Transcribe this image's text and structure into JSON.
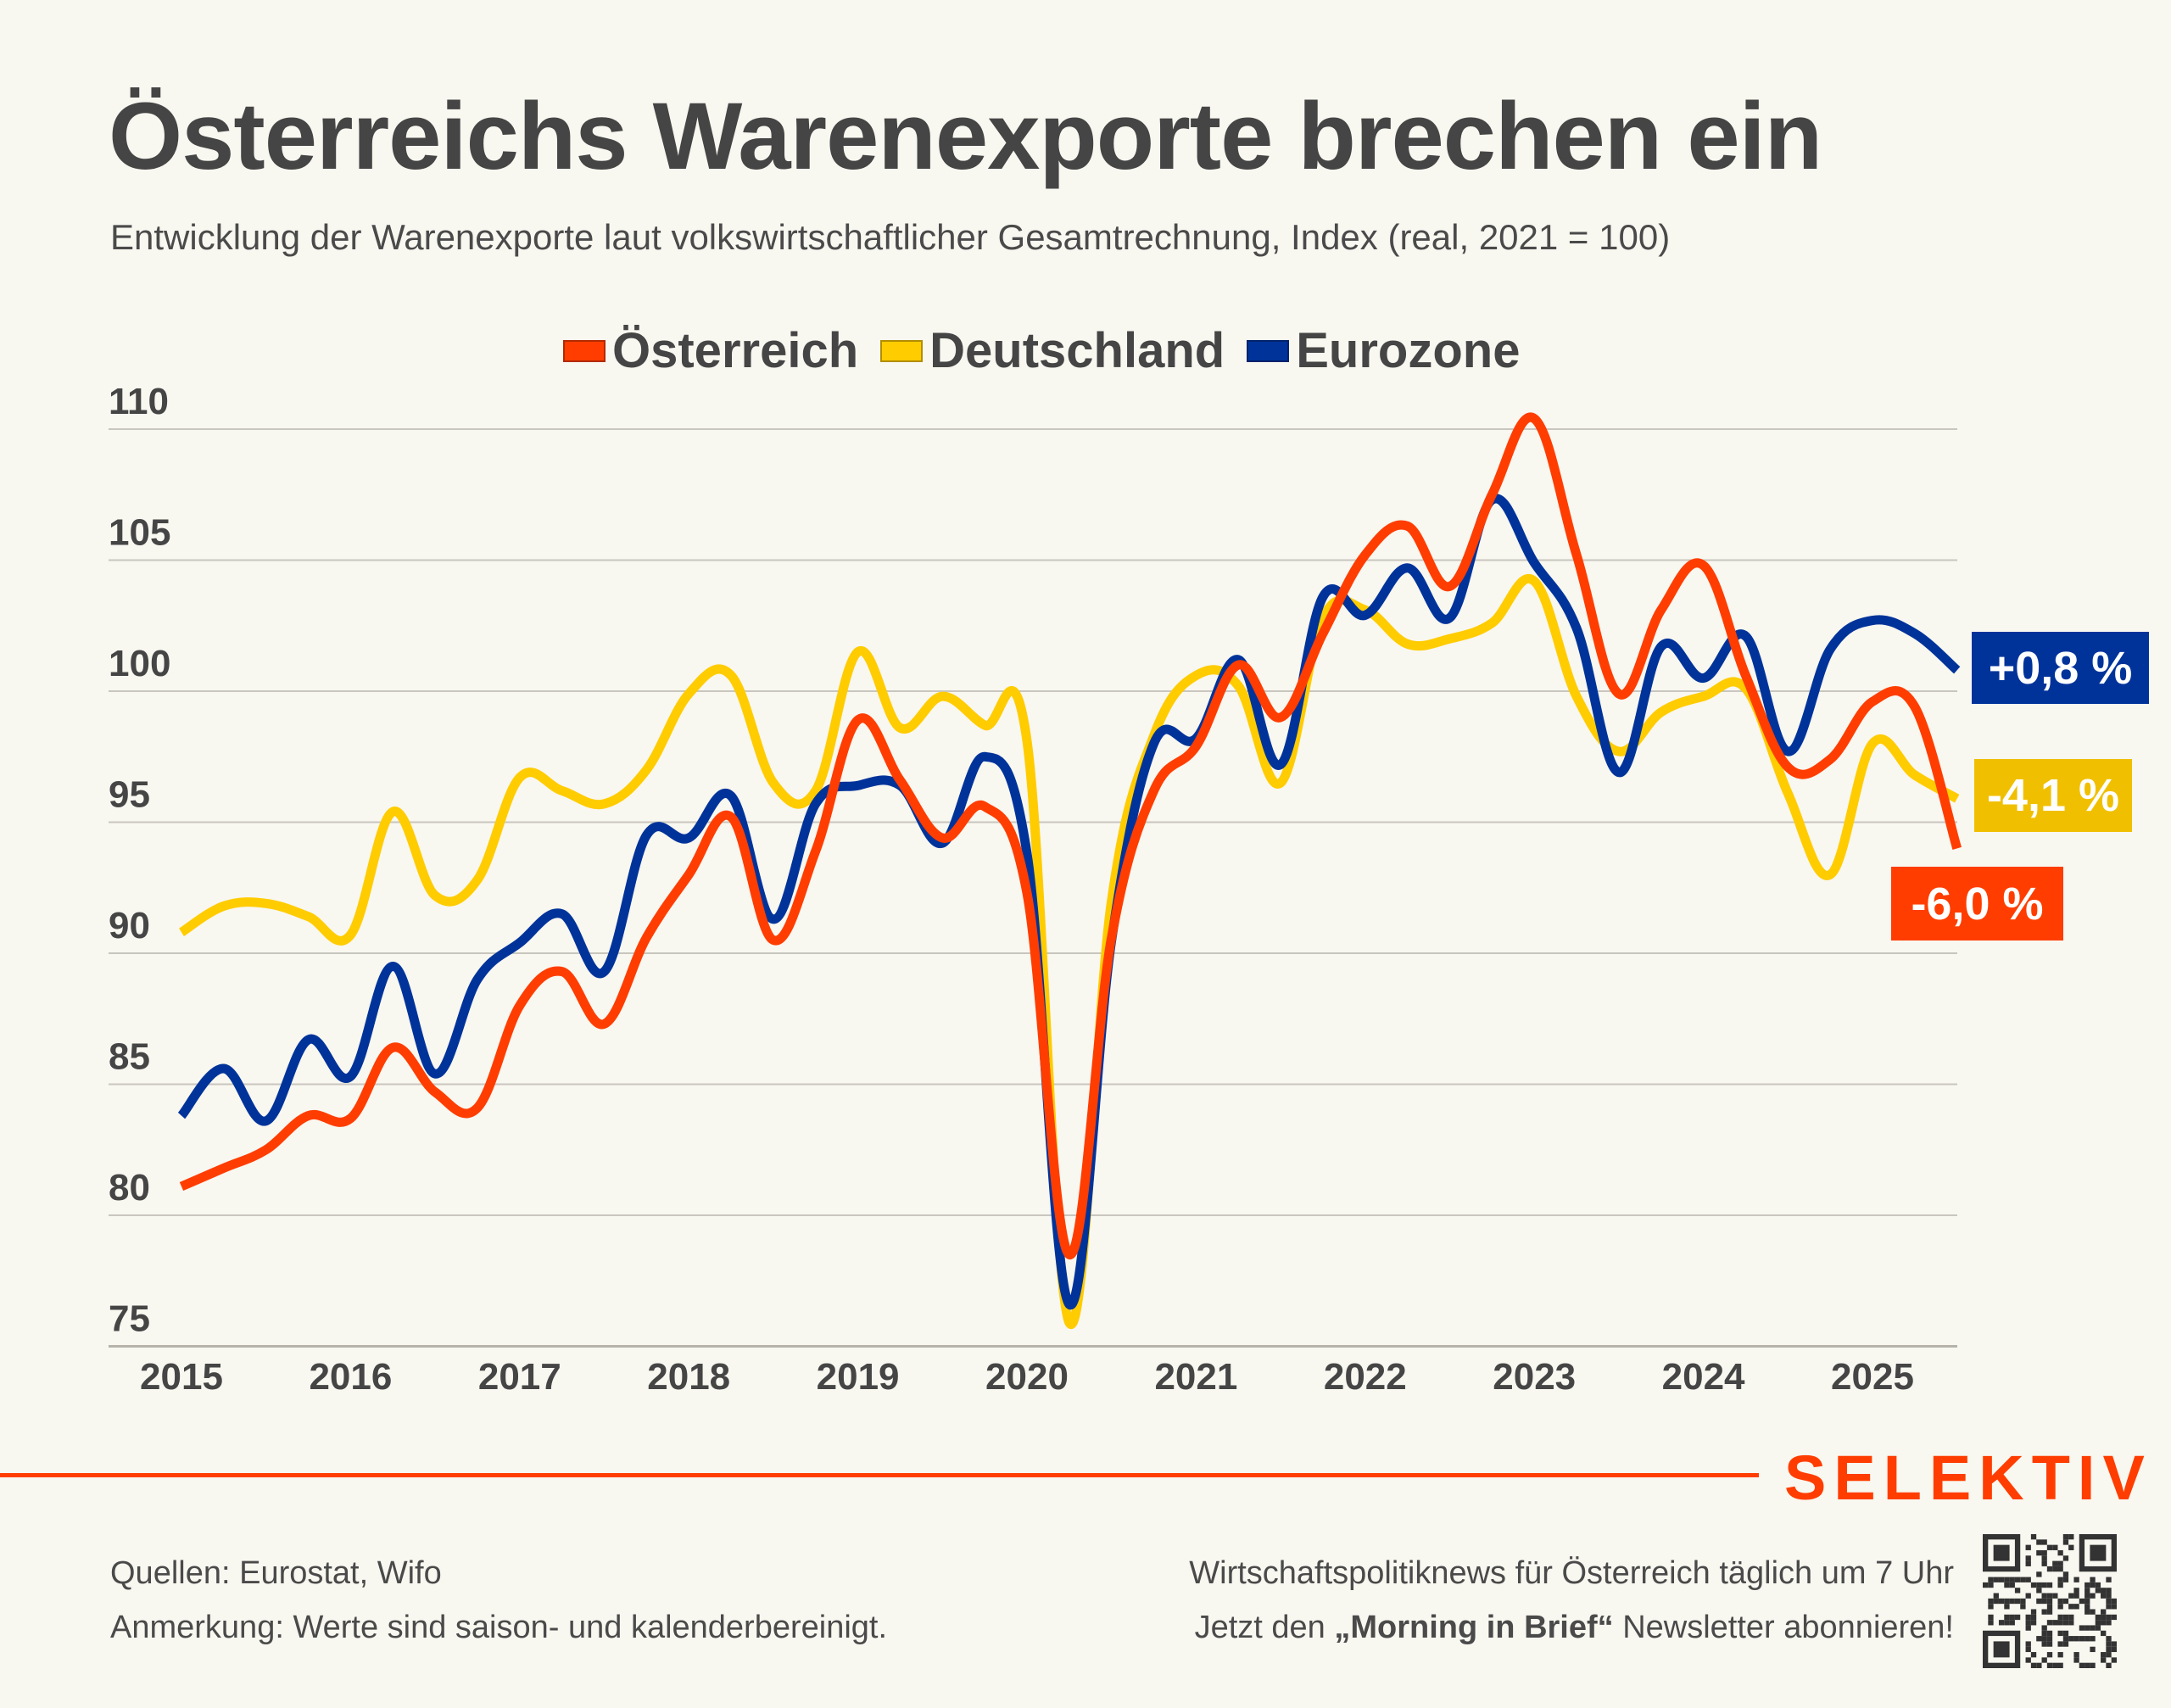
{
  "header": {
    "title": "Österreichs Warenexporte brechen ein",
    "subtitle": "Entwicklung der Warenexporte laut volkswirtschaftlicher Gesamtrechnung, Index (real, 2021 = 100)"
  },
  "legend": [
    {
      "label": "Österreich",
      "color": "#FF3D00"
    },
    {
      "label": "Deutschland",
      "color": "#FFCC00"
    },
    {
      "label": "Eurozone",
      "color": "#00339A"
    }
  ],
  "chart_data": {
    "type": "line",
    "title": "Österreichs Warenexporte brechen ein",
    "subtitle": "Entwicklung der Warenexporte laut volkswirtschaftlicher Gesamtrechnung, Index (real, 2021 = 100)",
    "xlabel": "",
    "ylabel": "",
    "frequency": "quarterly",
    "x_start": "2015Q1",
    "x_end": "2025Q3",
    "x_tick_labels": [
      "2015",
      "2016",
      "2017",
      "2018",
      "2019",
      "2020",
      "2021",
      "2022",
      "2023",
      "2024",
      "2025"
    ],
    "y_tick_labels": [
      "75",
      "80",
      "85",
      "90",
      "95",
      "100",
      "105",
      "110"
    ],
    "ylim": [
      75,
      110
    ],
    "grid": "horizontal",
    "legend_position": "top-center",
    "series": [
      {
        "name": "Österreich",
        "color": "#FF3D00",
        "end_label": "-6,0 %",
        "values": [
          81.1,
          81.8,
          82.5,
          83.8,
          83.7,
          86.4,
          84.7,
          84.1,
          88.0,
          89.3,
          87.3,
          90.6,
          93.0,
          95.2,
          90.5,
          93.9,
          98.9,
          96.6,
          94.4,
          95.6,
          92.3,
          78.5,
          90.6,
          96.2,
          97.9,
          101.0,
          99.0,
          102.2,
          105.2,
          106.3,
          104.0,
          107.5,
          110.4,
          105.2,
          99.9,
          103.1,
          104.8,
          100.6,
          97.1,
          97.4,
          99.6,
          99.4,
          94.0
        ]
      },
      {
        "name": "Deutschland",
        "color": "#FFCC00",
        "end_label": "-4,1 %",
        "values": [
          90.8,
          91.8,
          91.9,
          91.4,
          90.7,
          95.4,
          92.2,
          92.8,
          96.7,
          96.2,
          95.7,
          97.0,
          99.9,
          100.6,
          96.5,
          96.2,
          101.5,
          98.6,
          99.8,
          98.7,
          98.1,
          75.9,
          92.0,
          98.3,
          100.6,
          100.2,
          96.5,
          102.8,
          103.1,
          101.8,
          102.0,
          102.6,
          104.2,
          99.8,
          97.7,
          99.2,
          99.8,
          100.1,
          96.1,
          93.0,
          98.0,
          96.8,
          95.9
        ]
      },
      {
        "name": "Eurozone",
        "color": "#00339A",
        "end_label": "+0,8 %",
        "values": [
          83.8,
          85.6,
          83.6,
          86.7,
          85.3,
          89.5,
          85.4,
          89.0,
          90.4,
          91.5,
          89.3,
          94.5,
          94.4,
          96.0,
          91.3,
          95.7,
          96.4,
          96.4,
          94.2,
          97.5,
          93.8,
          76.6,
          90.5,
          98.0,
          98.2,
          101.2,
          97.2,
          103.6,
          102.9,
          104.7,
          102.8,
          107.3,
          104.9,
          102.4,
          96.9,
          101.7,
          100.5,
          102.1,
          97.7,
          101.6,
          102.7,
          102.2,
          100.8
        ]
      }
    ]
  },
  "end_labels": {
    "eurozone": {
      "text": "+0,8 %",
      "color": "#00339A"
    },
    "deutschland": {
      "text": "-4,1 %",
      "color": "#F0C000"
    },
    "oesterreich": {
      "text": "-6,0 %",
      "color": "#FF3D00"
    }
  },
  "brand": {
    "logo": "SELEKTIV",
    "accent": "#FF3D00"
  },
  "footer": {
    "sources": "Quellen: Eurostat, Wifo",
    "note": "Anmerkung: Werte sind saison- und kalenderbereinigt.",
    "promo_line1": "Wirtschaftspolitiknews für Österreich täglich um 7 Uhr",
    "promo_line2_pre": "Jetzt den ",
    "promo_line2_bold": "„Morning in Brief“",
    "promo_line2_post": " Newsletter abonnieren!",
    "qr_icon": "qr-code-icon"
  },
  "colors": {
    "background": "#F8F7F0",
    "text": "#454545",
    "gridline": "#C8C6BE"
  }
}
